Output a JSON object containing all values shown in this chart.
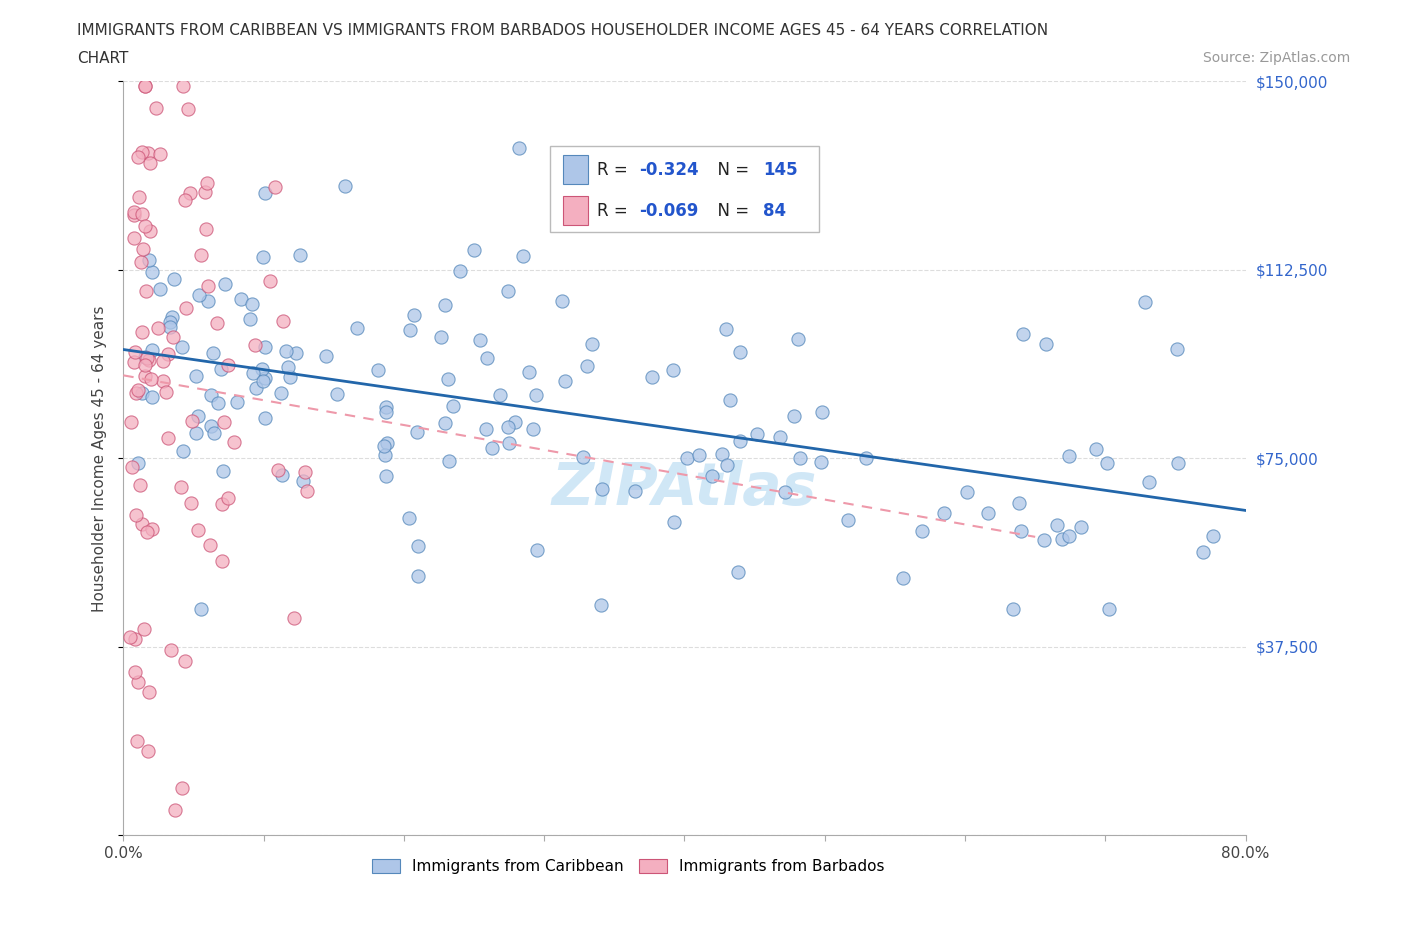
{
  "title_line1": "IMMIGRANTS FROM CARIBBEAN VS IMMIGRANTS FROM BARBADOS HOUSEHOLDER INCOME AGES 45 - 64 YEARS CORRELATION",
  "title_line2": "CHART",
  "source": "Source: ZipAtlas.com",
  "ylabel": "Householder Income Ages 45 - 64 years",
  "xlim": [
    0.0,
    0.8
  ],
  "ylim": [
    0,
    150000
  ],
  "yticks": [
    0,
    37500,
    75000,
    112500,
    150000
  ],
  "ytick_labels": [
    "",
    "$37,500",
    "$75,000",
    "$112,500",
    "$150,000"
  ],
  "xticks": [
    0.0,
    0.1,
    0.2,
    0.3,
    0.4,
    0.5,
    0.6,
    0.7,
    0.8
  ],
  "xtick_labels": [
    "0.0%",
    "",
    "",
    "",
    "",
    "",
    "",
    "",
    "80.0%"
  ],
  "caribbean_color": "#aec6e8",
  "barbados_color": "#f4afc0",
  "caribbean_edge": "#5588bb",
  "barbados_edge": "#cc5577",
  "trendline_caribbean_color": "#2266aa",
  "trendline_barbados_color": "#ee99aa",
  "watermark": "ZIPAtlas",
  "R_caribbean": -0.324,
  "N_caribbean": 145,
  "R_barbados": -0.069,
  "N_barbados": 84,
  "legend_caribbean_label": "Immigrants from Caribbean",
  "legend_barbados_label": "Immigrants from Barbados",
  "background_color": "#ffffff",
  "grid_color": "#dddddd"
}
